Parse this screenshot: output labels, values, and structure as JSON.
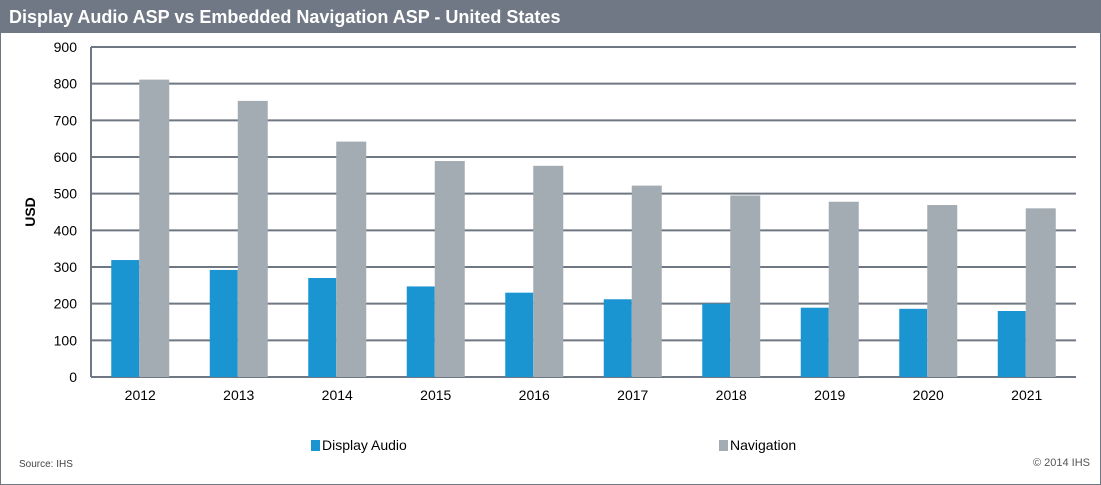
{
  "chart_data": {
    "type": "bar",
    "title": "Display Audio ASP vs Embedded Navigation ASP - United States",
    "xlabel": "",
    "ylabel": "USD",
    "ylim": [
      0,
      900
    ],
    "yticks": [
      0,
      100,
      200,
      300,
      400,
      500,
      600,
      700,
      800,
      900
    ],
    "grid": true,
    "legend_placement": "bottom",
    "categories": [
      "2012",
      "2013",
      "2014",
      "2015",
      "2016",
      "2017",
      "2018",
      "2019",
      "2020",
      "2021"
    ],
    "series": [
      {
        "name": "Display Audio",
        "color": "#1b95d2",
        "values": [
          319,
          292,
          270,
          247,
          230,
          212,
          200,
          189,
          186,
          180
        ]
      },
      {
        "name": "Navigation",
        "color": "#a3acb3",
        "values": [
          811,
          753,
          642,
          589,
          576,
          522,
          495,
          478,
          469,
          460
        ]
      }
    ]
  },
  "footer": {
    "source": "Source: IHS",
    "copyright": "© 2014 IHS"
  }
}
